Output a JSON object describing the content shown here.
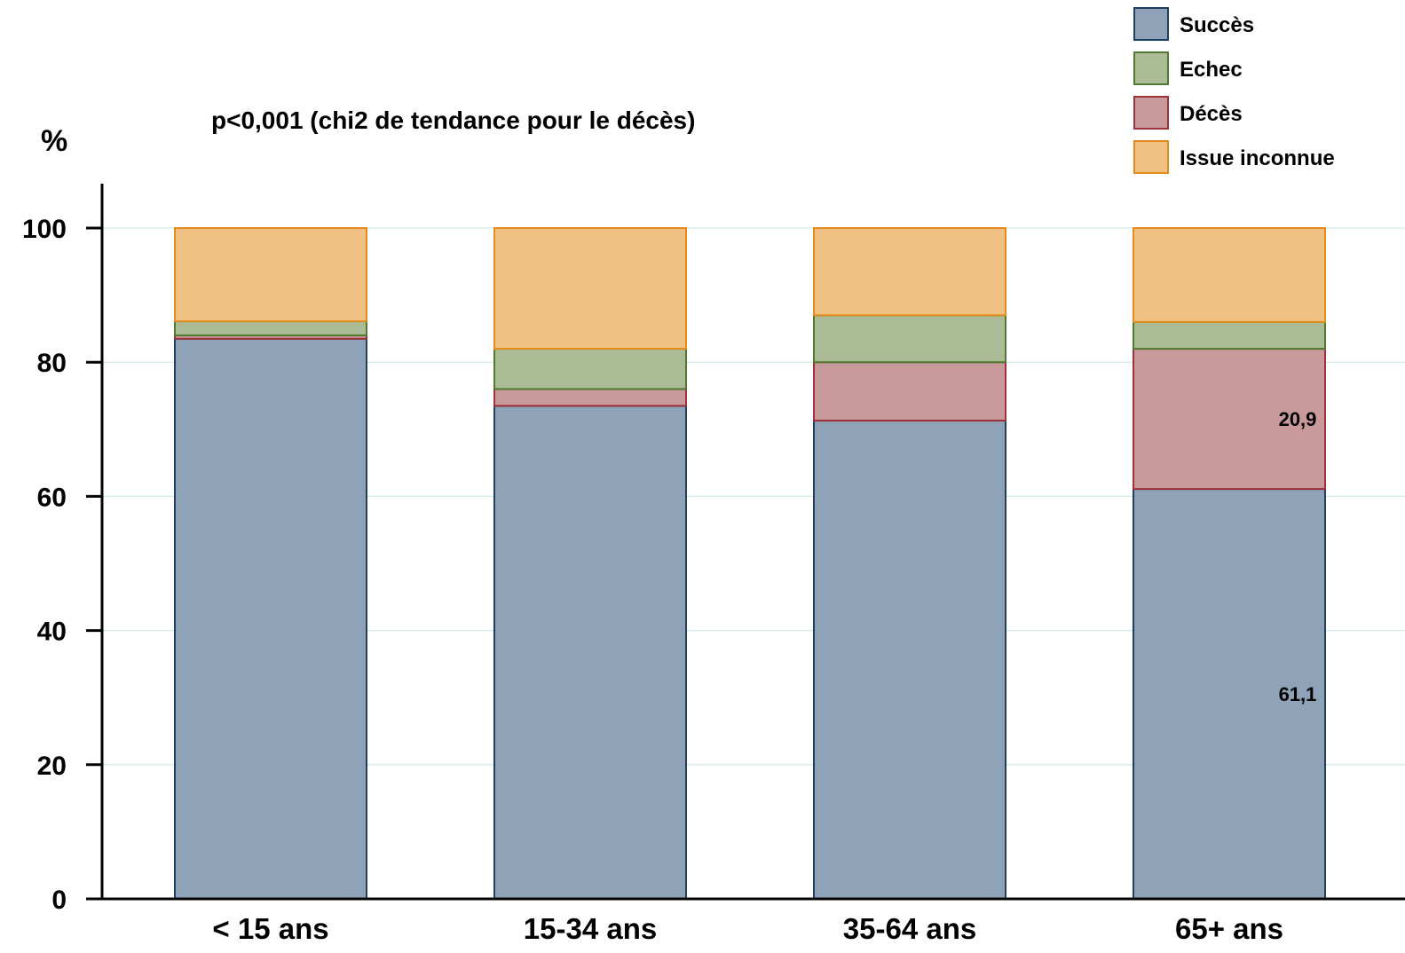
{
  "chart_data": {
    "type": "bar",
    "stacked": true,
    "ylabel": "%",
    "annotation": "p<0,001 (chi2 de tendance pour le décès)",
    "categories": [
      "< 15 ans",
      "15-34 ans",
      "35-64 ans",
      "65+ ans"
    ],
    "ylim": [
      0,
      100
    ],
    "yticks": [
      0,
      20,
      40,
      60,
      80,
      100
    ],
    "grid": true,
    "legend_position": "top-right",
    "series": [
      {
        "name": "Succès",
        "color": "#8ea3b8",
        "stroke": "#1f3f63",
        "values": [
          83.5,
          73.5,
          71.3,
          61.1
        ]
      },
      {
        "name": "Décès",
        "color": "#c99a9c",
        "stroke": "#a0303a",
        "values": [
          0.5,
          2.5,
          8.7,
          20.9
        ]
      },
      {
        "name": "Echec",
        "color": "#abbb95",
        "stroke": "#4f7a2f",
        "values": [
          2.1,
          6.0,
          7.0,
          4.0
        ]
      },
      {
        "name": "Issue inconnue",
        "color": "#f1c083",
        "stroke": "#e58b1d",
        "values": [
          13.9,
          18.0,
          13.0,
          14.0
        ]
      }
    ],
    "legend_order": [
      "Succès",
      "Echec",
      "Décès",
      "Issue inconnue"
    ],
    "data_labels": [
      {
        "category": "65+ ans",
        "series": "Succès",
        "text": "61,1"
      },
      {
        "category": "65+ ans",
        "series": "Décès",
        "text": "20,9"
      }
    ]
  }
}
